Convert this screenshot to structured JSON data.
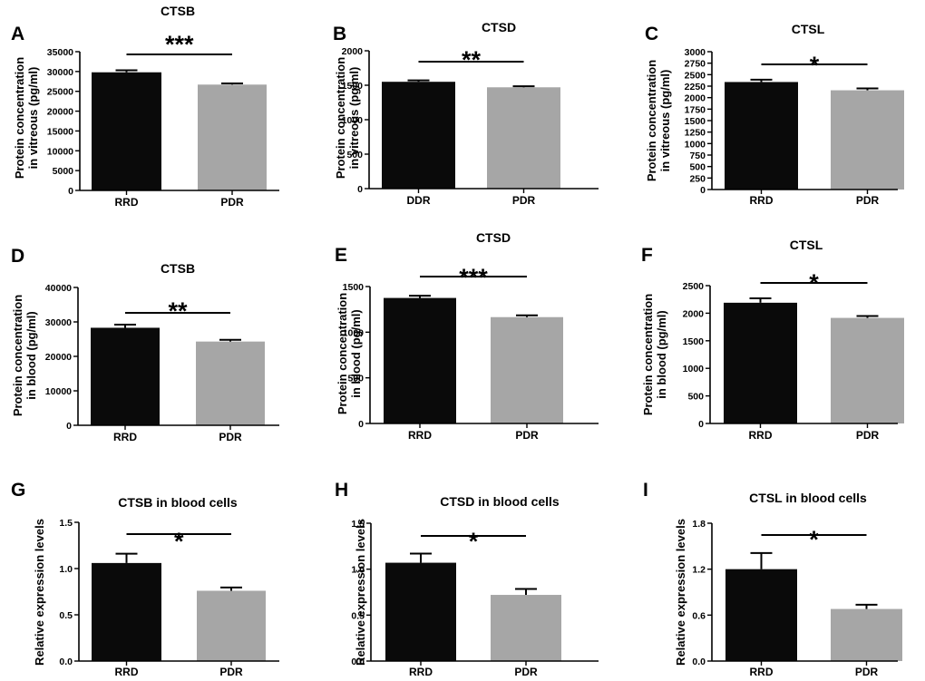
{
  "chart_data": [
    {
      "panel": "A",
      "type": "bar",
      "title": "CTSB",
      "ylabel": [
        "Protein concentration",
        "in vitreous (pg/ml)"
      ],
      "categories": [
        "RRD",
        "PDR"
      ],
      "values": [
        29800,
        26700
      ],
      "errors": [
        500,
        300
      ],
      "colors": [
        "#0a0a0a",
        "#a6a6a6"
      ],
      "ylim": [
        0,
        35000
      ],
      "yticks": [
        "0",
        "5000",
        "10000",
        "15000",
        "20000",
        "25000",
        "30000",
        "35000"
      ],
      "significance": "***"
    },
    {
      "panel": "B",
      "type": "bar",
      "title": "CTSD",
      "ylabel": [
        "Protein concentration",
        "in vitreous (pg/ml)"
      ],
      "categories": [
        "DDR",
        "PDR"
      ],
      "values": [
        1550,
        1470
      ],
      "errors": [
        20,
        15
      ],
      "colors": [
        "#0a0a0a",
        "#a6a6a6"
      ],
      "ylim": [
        0,
        2000
      ],
      "yticks": [
        "0",
        "500",
        "1000",
        "1500",
        "2000"
      ],
      "significance": "**"
    },
    {
      "panel": "C",
      "type": "bar",
      "title": "CTSL",
      "ylabel": [
        "Protein concentration",
        "in vitreous (pg/ml)"
      ],
      "categories": [
        "RRD",
        "PDR"
      ],
      "values": [
        2340,
        2160
      ],
      "errors": [
        50,
        40
      ],
      "colors": [
        "#0a0a0a",
        "#a6a6a6"
      ],
      "ylim": [
        0,
        3000
      ],
      "yticks": [
        "0",
        "250",
        "500",
        "750",
        "1000",
        "1250",
        "1500",
        "1750",
        "2000",
        "2250",
        "2500",
        "2750",
        "3000"
      ],
      "significance": "*"
    },
    {
      "panel": "D",
      "type": "bar",
      "title": "CTSB",
      "ylabel": [
        "Protein concentration",
        "in blood (pg/ml)"
      ],
      "categories": [
        "RRD",
        "PDR"
      ],
      "values": [
        28300,
        24300
      ],
      "errors": [
        900,
        500
      ],
      "colors": [
        "#0a0a0a",
        "#a6a6a6"
      ],
      "ylim": [
        0,
        40000
      ],
      "yticks": [
        "0",
        "10000",
        "20000",
        "30000",
        "40000"
      ],
      "significance": "**"
    },
    {
      "panel": "E",
      "type": "bar",
      "title": "CTSD",
      "ylabel": [
        "Protein concentration",
        "in blood (pg/ml)"
      ],
      "categories": [
        "RRD",
        "PDR"
      ],
      "values": [
        1375,
        1165
      ],
      "errors": [
        25,
        20
      ],
      "colors": [
        "#0a0a0a",
        "#a6a6a6"
      ],
      "ylim": [
        0,
        1500
      ],
      "yticks": [
        "0",
        "500",
        "1000",
        "1500"
      ],
      "significance": "***"
    },
    {
      "panel": "F",
      "type": "bar",
      "title": "CTSL",
      "ylabel": [
        "Protein concentration",
        "in blood (pg/ml)"
      ],
      "categories": [
        "RRD",
        "PDR"
      ],
      "values": [
        2190,
        1915
      ],
      "errors": [
        80,
        35
      ],
      "colors": [
        "#0a0a0a",
        "#a6a6a6"
      ],
      "ylim": [
        0,
        2500
      ],
      "yticks": [
        "0",
        "500",
        "1000",
        "1500",
        "2000",
        "2500"
      ],
      "significance": "*"
    },
    {
      "panel": "G",
      "type": "bar",
      "title": "CTSB in blood cells",
      "ylabel": [
        "Relative expression levels"
      ],
      "categories": [
        "RRD",
        "PDR"
      ],
      "values": [
        1.06,
        0.76
      ],
      "errors": [
        0.1,
        0.035
      ],
      "colors": [
        "#0a0a0a",
        "#a6a6a6"
      ],
      "ylim": [
        0,
        1.5
      ],
      "yticks": [
        "0.0",
        "0.5",
        "1.0",
        "1.5"
      ],
      "significance": "*"
    },
    {
      "panel": "H",
      "type": "bar",
      "title": "CTSD in blood cells",
      "ylabel": [
        "Relative expression levels"
      ],
      "categories": [
        "RRD",
        "PDR"
      ],
      "values": [
        1.07,
        0.72
      ],
      "errors": [
        0.1,
        0.065
      ],
      "colors": [
        "#0a0a0a",
        "#a6a6a6"
      ],
      "ylim": [
        0,
        1.5
      ],
      "yticks": [
        "0.0",
        "0.5",
        "1.0",
        "1.5"
      ],
      "significance": "*"
    },
    {
      "panel": "I",
      "type": "bar",
      "title": "CTSL in blood cells",
      "ylabel": [
        "Relative expression levels"
      ],
      "categories": [
        "RRD",
        "PDR"
      ],
      "values": [
        1.2,
        0.68
      ],
      "errors": [
        0.21,
        0.055
      ],
      "colors": [
        "#0a0a0a",
        "#a6a6a6"
      ],
      "ylim": [
        0,
        1.8
      ],
      "yticks": [
        "0.0",
        "0.6",
        "1.2",
        "1.8"
      ],
      "significance": "*"
    }
  ]
}
